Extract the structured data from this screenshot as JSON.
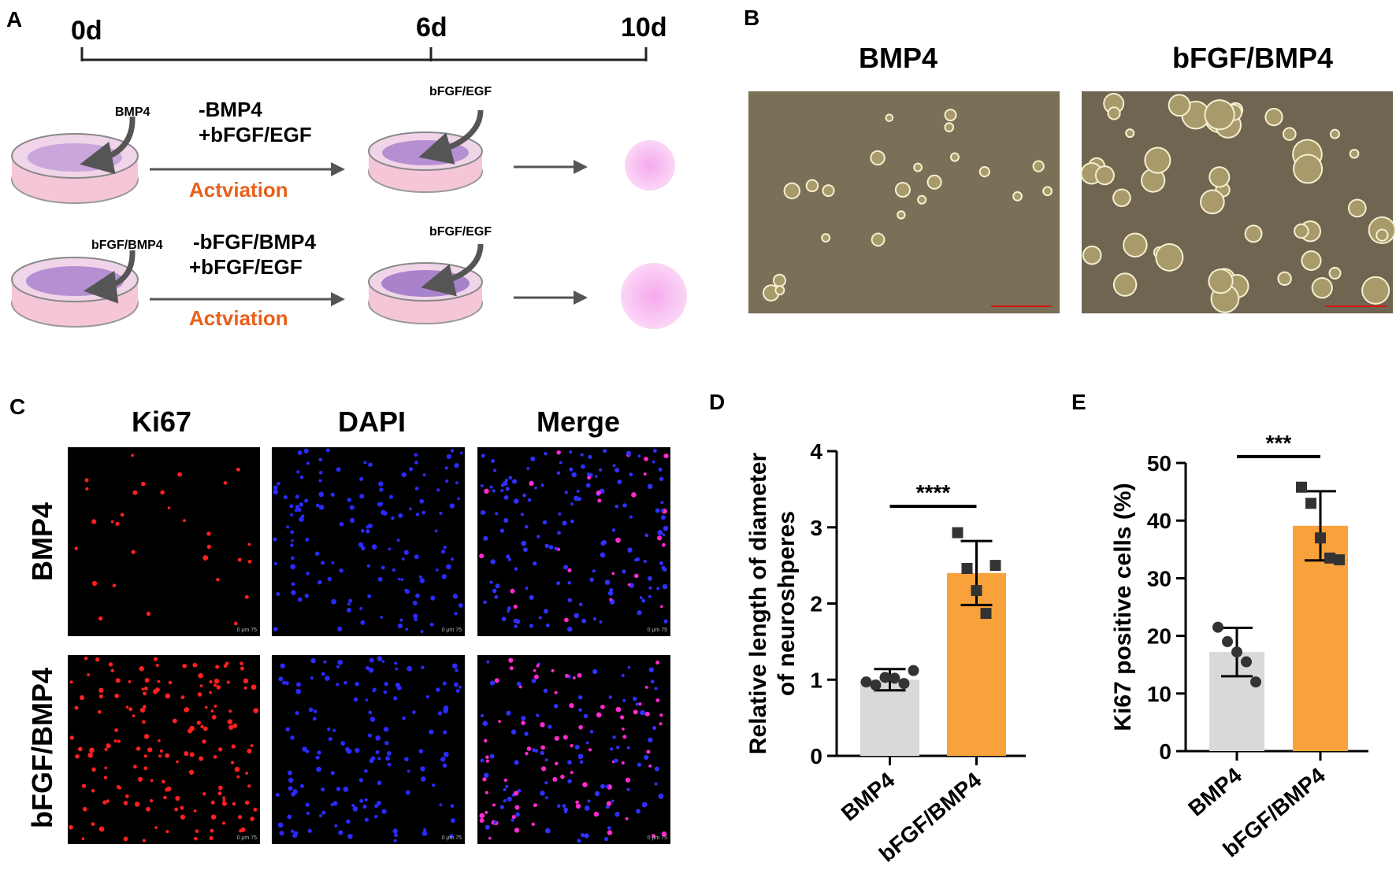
{
  "panels": {
    "a": "A",
    "b": "B",
    "c": "C",
    "d": "D",
    "e": "E"
  },
  "timeline": {
    "t0": "0d",
    "t1": "6d",
    "t2": "10d"
  },
  "schematic": {
    "row1": {
      "added": "BMP4",
      "step1": "-BMP4",
      "step2": "+bFGF/EGF",
      "added2": "bFGF/EGF",
      "activation": "Actviation"
    },
    "row2": {
      "added": "bFGF/BMP4",
      "step1": "-bFGF/BMP4",
      "step2": "+bFGF/EGF",
      "added2": "bFGF/EGF",
      "activation": "Actviation"
    },
    "activation_color": "#e8601c"
  },
  "micrographs": {
    "col1": "BMP4",
    "col2": "bFGF/BMP4"
  },
  "immunofluorescence": {
    "columns": [
      "Ki67",
      "DAPI",
      "Merge"
    ],
    "rows": [
      "BMP4",
      "bFGF/BMP4"
    ],
    "scale_label": "0    μm    75"
  },
  "chart_data": [
    {
      "type": "bar",
      "panel": "D",
      "categories": [
        "BMP4",
        "bFGF/BMP4"
      ],
      "values": [
        1.0,
        2.4
      ],
      "error": [
        0.14,
        0.42
      ],
      "points": [
        [
          0.97,
          0.93,
          1.03,
          1.02,
          0.95,
          1.12
        ],
        [
          2.93,
          2.46,
          2.17,
          1.87,
          2.5
        ]
      ],
      "bar_colors": [
        "#d9d9d9",
        "#f9a23c"
      ],
      "ylabel": "Relative length of diameter of neuroshperes",
      "ylim": [
        0,
        4
      ],
      "yticks": [
        0,
        1,
        2,
        3,
        4
      ],
      "significance": "****"
    },
    {
      "type": "bar",
      "panel": "E",
      "categories": [
        "BMP4",
        "bFGF/BMP4"
      ],
      "values": [
        17.2,
        39.1
      ],
      "error": [
        4.2,
        6.0
      ],
      "points": [
        [
          21.5,
          19.0,
          17.2,
          15.5,
          12.0
        ],
        [
          45.8,
          43.0,
          37.0,
          33.5,
          33.2
        ]
      ],
      "bar_colors": [
        "#d9d9d9",
        "#f9a23c"
      ],
      "ylabel": "Ki67 positive cells (%)",
      "ylim": [
        0,
        50
      ],
      "yticks": [
        0,
        10,
        20,
        30,
        40,
        50
      ],
      "significance": "***"
    }
  ]
}
